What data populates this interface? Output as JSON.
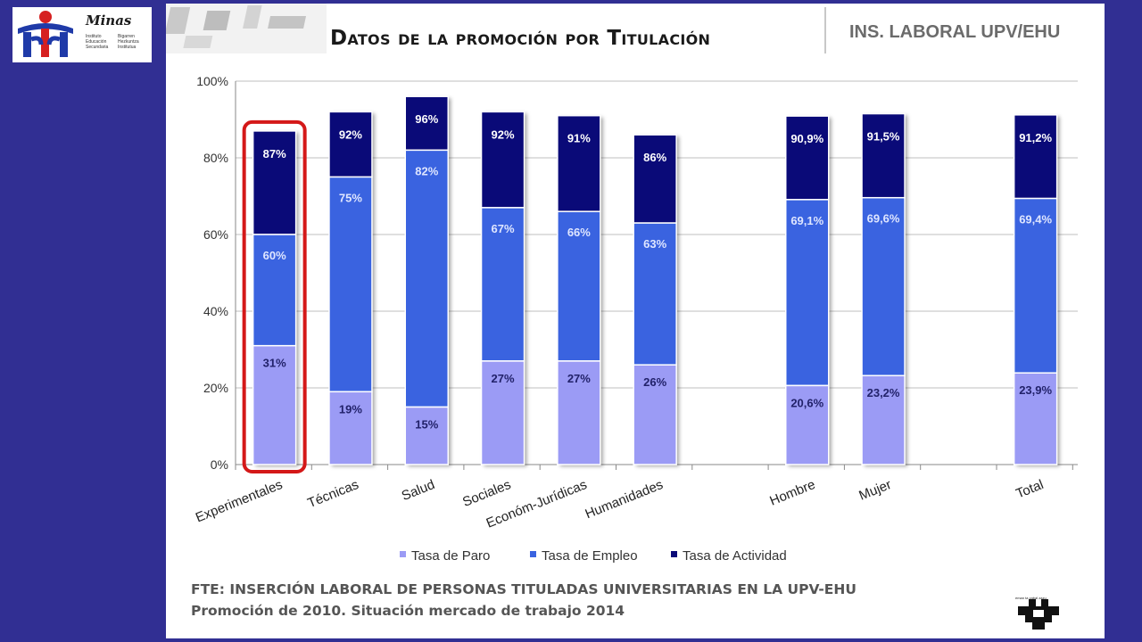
{
  "branding": {
    "logo_name": "Minas",
    "logo_lines_left": [
      "Instituto",
      "Educación",
      "Secundaria"
    ],
    "logo_lines_right": [
      "Bigarren",
      "Hezkuntza",
      "Institutua"
    ],
    "univ_small_text": "eman ta zabal zazu"
  },
  "header": {
    "title": "Datos de la promoción por Titulación",
    "org": "INS. LABORAL UPV/EHU"
  },
  "footer": {
    "line1": "FTE: INSERCIÓN LABORAL DE PERSONAS TITULADAS UNIVERSITARIAS EN LA UPV-EHU",
    "line2": "Promoción de 2010. Situación mercado de trabajo 2014"
  },
  "colors": {
    "paro": "#9b9bf5",
    "empleo": "#3a63e0",
    "actividad": "#0a0a78",
    "highlight": "#d41818",
    "grid": "#bfbfbf"
  },
  "chart_data": {
    "type": "bar",
    "stacked": "overlay",
    "title": "",
    "xlabel": "",
    "ylabel": "",
    "ylim": [
      0,
      100
    ],
    "yticks": [
      "0%",
      "20%",
      "40%",
      "60%",
      "80%",
      "100%"
    ],
    "grid": true,
    "legend_position": "bottom",
    "categories": [
      "Experimentales",
      "Técnicas",
      "Salud",
      "Sociales",
      "Económ-Jurídicas",
      "Humanidades",
      "Hombre",
      "Mujer",
      "Total"
    ],
    "slots": [
      0,
      1,
      2,
      3,
      4,
      5,
      7,
      8,
      10
    ],
    "highlighted_category": "Experimentales",
    "series": [
      {
        "name": "Tasa de Paro",
        "values": [
          31,
          19,
          15,
          27,
          27,
          26,
          20.6,
          23.2,
          23.9
        ],
        "labels": [
          "31%",
          "19%",
          "15%",
          "27%",
          "27%",
          "26%",
          "20,6%",
          "23,2%",
          "23,9%"
        ]
      },
      {
        "name": "Tasa de Empleo",
        "values": [
          60,
          75,
          82,
          67,
          66,
          63,
          69.1,
          69.6,
          69.4
        ],
        "labels": [
          "60%",
          "75%",
          "82%",
          "67%",
          "66%",
          "63%",
          "69,1%",
          "69,6%",
          "69,4%"
        ]
      },
      {
        "name": "Tasa de Actividad",
        "values": [
          87,
          92,
          96,
          92,
          91,
          86,
          90.9,
          91.5,
          91.2
        ],
        "labels": [
          "87%",
          "92%",
          "96%",
          "92%",
          "91%",
          "86%",
          "90,9%",
          "91,5%",
          "91,2%"
        ]
      }
    ]
  }
}
